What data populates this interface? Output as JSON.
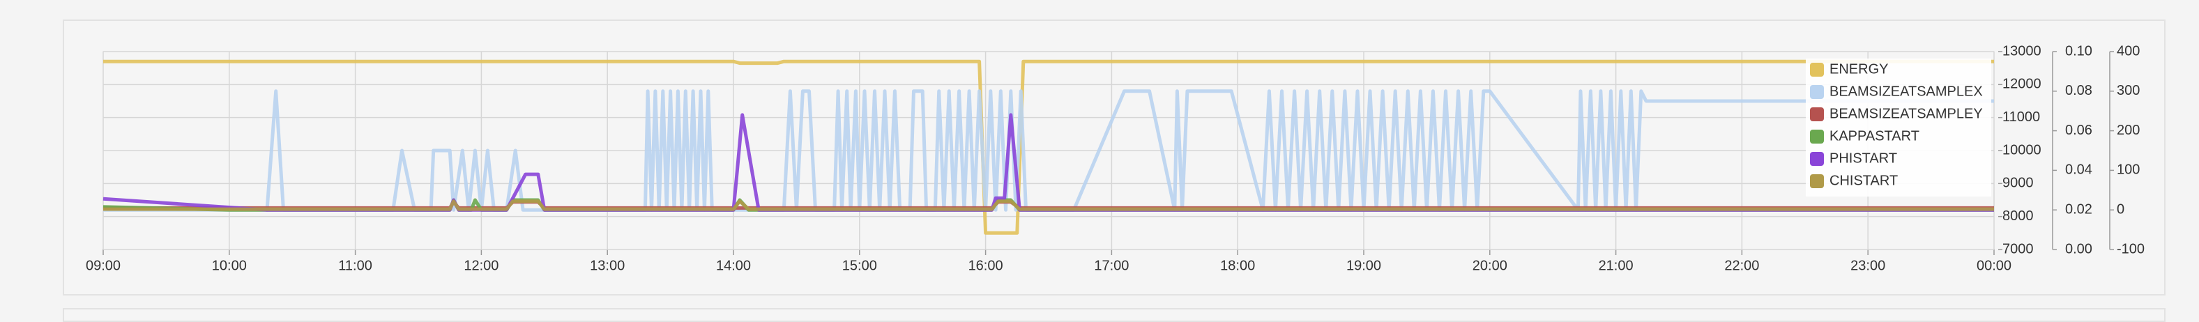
{
  "chart_data": {
    "type": "line",
    "grid": true,
    "legend": "top-right",
    "xlim": [
      9,
      24
    ],
    "xticks": [
      {
        "value": 9,
        "label": "09:00"
      },
      {
        "value": 10,
        "label": "10:00"
      },
      {
        "value": 11,
        "label": "11:00"
      },
      {
        "value": 12,
        "label": "12:00"
      },
      {
        "value": 13,
        "label": "13:00"
      },
      {
        "value": 14,
        "label": "14:00"
      },
      {
        "value": 15,
        "label": "15:00"
      },
      {
        "value": 16,
        "label": "16:00"
      },
      {
        "value": 17,
        "label": "17:00"
      },
      {
        "value": 18,
        "label": "18:00"
      },
      {
        "value": 19,
        "label": "19:00"
      },
      {
        "value": 20,
        "label": "20:00"
      },
      {
        "value": 21,
        "label": "21:00"
      },
      {
        "value": 22,
        "label": "22:00"
      },
      {
        "value": 23,
        "label": "23:00"
      },
      {
        "value": 24,
        "label": "00:00"
      }
    ],
    "ylim": [
      7000,
      13000
    ],
    "yticks": [
      7000,
      8000,
      9000,
      10000,
      11000,
      12000,
      13000
    ],
    "y2lim": [
      0,
      0.1
    ],
    "y2ticks": [
      {
        "value": 0,
        "label": "0.00"
      },
      {
        "value": 0.02,
        "label": "0.02"
      },
      {
        "value": 0.04,
        "label": "0.04"
      },
      {
        "value": 0.06,
        "label": "0.06"
      },
      {
        "value": 0.08,
        "label": "0.08"
      },
      {
        "value": 0.1,
        "label": "0.10"
      }
    ],
    "y3lim": [
      -100,
      400
    ],
    "y3ticks": [
      -100,
      0,
      100,
      200,
      300,
      400
    ],
    "series": [
      {
        "name": "ENERGY",
        "color": "#e2c25c",
        "axis": "y",
        "x": [
          9,
          14,
          14.05,
          14.35,
          14.4,
          15.95,
          16,
          16.25,
          16.3,
          24
        ],
        "values": [
          12700,
          12700,
          12650,
          12650,
          12700,
          12700,
          7500,
          7500,
          12700,
          12700
        ]
      },
      {
        "name": "BEAMSIZEATSAMPLEX",
        "color": "#b9d3f0",
        "axis": "y2",
        "x": [
          9,
          10.3,
          10.37,
          10.43,
          11.3,
          11.37,
          11.47,
          11.6,
          11.62,
          11.75,
          11.78,
          11.85,
          11.9,
          11.95,
          12,
          12.05,
          12.1,
          12.2,
          12.27,
          12.33,
          13.3,
          13.32,
          13.35,
          13.38,
          13.41,
          13.44,
          13.47,
          13.5,
          13.53,
          13.56,
          13.59,
          13.62,
          13.65,
          13.68,
          13.71,
          13.74,
          13.77,
          13.8,
          13.83,
          14.4,
          14.45,
          14.5,
          14.55,
          14.6,
          14.65,
          14.8,
          14.83,
          14.86,
          14.9,
          14.93,
          14.97,
          15,
          15.04,
          15.08,
          15.12,
          15.16,
          15.2,
          15.24,
          15.28,
          15.32,
          15.4,
          15.43,
          15.5,
          15.53,
          15.6,
          15.63,
          15.67,
          15.71,
          15.75,
          15.79,
          15.83,
          15.87,
          15.91,
          15.95,
          16,
          16.04,
          16.08,
          16.12,
          16.16,
          16.2,
          16.24,
          16.28,
          16.32,
          16.7,
          17.1,
          17.3,
          17.5,
          17.52,
          17.56,
          17.6,
          17.95,
          18.2,
          18.25,
          18.3,
          18.35,
          18.4,
          18.45,
          18.5,
          18.55,
          18.6,
          18.65,
          18.7,
          18.75,
          18.8,
          18.85,
          18.9,
          18.95,
          19,
          19.05,
          19.1,
          19.15,
          19.2,
          19.25,
          19.3,
          19.35,
          19.4,
          19.45,
          19.5,
          19.55,
          19.6,
          19.65,
          19.7,
          19.75,
          19.8,
          19.85,
          19.9,
          19.95,
          20,
          20.7,
          20.72,
          20.76,
          20.8,
          20.84,
          20.88,
          20.92,
          20.96,
          21,
          21.04,
          21.08,
          21.12,
          21.16,
          21.2,
          21.24,
          24
        ],
        "values": [
          0.02,
          0.02,
          0.08,
          0.02,
          0.02,
          0.05,
          0.02,
          0.02,
          0.05,
          0.05,
          0.02,
          0.05,
          0.02,
          0.05,
          0.02,
          0.05,
          0.02,
          0.02,
          0.05,
          0.02,
          0.02,
          0.08,
          0.02,
          0.08,
          0.02,
          0.08,
          0.02,
          0.08,
          0.02,
          0.08,
          0.02,
          0.08,
          0.02,
          0.08,
          0.02,
          0.08,
          0.02,
          0.08,
          0.02,
          0.02,
          0.08,
          0.02,
          0.08,
          0.08,
          0.02,
          0.02,
          0.08,
          0.02,
          0.08,
          0.02,
          0.08,
          0.02,
          0.08,
          0.02,
          0.08,
          0.02,
          0.08,
          0.02,
          0.08,
          0.02,
          0.02,
          0.08,
          0.08,
          0.02,
          0.02,
          0.08,
          0.02,
          0.08,
          0.02,
          0.08,
          0.02,
          0.08,
          0.02,
          0.08,
          0.02,
          0.08,
          0.02,
          0.08,
          0.02,
          0.08,
          0.02,
          0.08,
          0.02,
          0.02,
          0.08,
          0.08,
          0.02,
          0.08,
          0.02,
          0.08,
          0.08,
          0.02,
          0.08,
          0.02,
          0.08,
          0.02,
          0.08,
          0.02,
          0.08,
          0.02,
          0.08,
          0.02,
          0.08,
          0.02,
          0.08,
          0.02,
          0.08,
          0.02,
          0.08,
          0.02,
          0.08,
          0.02,
          0.08,
          0.02,
          0.08,
          0.02,
          0.08,
          0.02,
          0.08,
          0.02,
          0.08,
          0.02,
          0.08,
          0.02,
          0.08,
          0.02,
          0.08,
          0.08,
          0.02,
          0.08,
          0.02,
          0.08,
          0.02,
          0.08,
          0.02,
          0.08,
          0.02,
          0.08,
          0.02,
          0.08,
          0.02,
          0.08,
          0.075,
          0.075
        ]
      },
      {
        "name": "BEAMSIZEATSAMPLEY",
        "color": "#b5524f",
        "axis": "y2",
        "x": [
          9,
          11.75,
          11.78,
          11.82,
          12.2,
          12.25,
          12.45,
          12.5,
          16.05,
          16.1,
          16.2,
          16.27,
          24
        ],
        "values": [
          0.021,
          0.021,
          0.024,
          0.021,
          0.021,
          0.024,
          0.024,
          0.021,
          0.021,
          0.024,
          0.024,
          0.021,
          0.021
        ]
      },
      {
        "name": "KAPPASTART",
        "color": "#6aa84f",
        "axis": "y3",
        "x": [
          9,
          10,
          11.75,
          11.78,
          11.82,
          11.92,
          11.95,
          12,
          12.2,
          12.25,
          12.45,
          12.5,
          14,
          14.05,
          14.12,
          16.05,
          16.1,
          16.2,
          16.27,
          24
        ],
        "values": [
          8,
          0,
          0,
          25,
          0,
          0,
          25,
          0,
          0,
          25,
          25,
          0,
          0,
          25,
          0,
          0,
          25,
          25,
          0,
          0
        ]
      },
      {
        "name": "PHISTART",
        "color": "#8a45d8",
        "axis": "y3",
        "x": [
          9,
          10.3,
          11.75,
          11.78,
          11.82,
          12.2,
          12.25,
          12.35,
          12.45,
          12.5,
          14,
          14.03,
          14.07,
          14.2,
          16.05,
          16.08,
          16.15,
          16.2,
          16.27,
          24
        ],
        "values": [
          28,
          0,
          0,
          25,
          0,
          0,
          30,
          90,
          90,
          0,
          0,
          100,
          240,
          0,
          0,
          30,
          30,
          240,
          0,
          0
        ]
      },
      {
        "name": "CHISTART",
        "color": "#b09a48",
        "axis": "y3",
        "x": [
          9,
          11.75,
          11.78,
          11.82,
          12.2,
          12.25,
          12.45,
          12.5,
          14,
          14.05,
          14.12,
          16.05,
          16.1,
          16.2,
          16.27,
          24
        ],
        "values": [
          2,
          2,
          22,
          2,
          2,
          22,
          22,
          2,
          2,
          22,
          2,
          2,
          22,
          22,
          2,
          2
        ]
      }
    ]
  }
}
